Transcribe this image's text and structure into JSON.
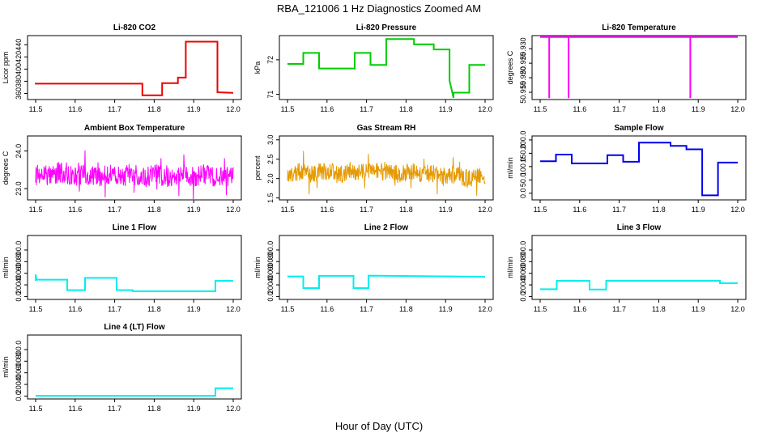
{
  "figure": {
    "title": "RBA_121006  1 Hz Diagnostics Zoomed AM",
    "xlabel": "Hour of Day (UTC)"
  },
  "chart_data": [
    {
      "type": "line",
      "title": "Li-820 CO2",
      "ylabel": "Licor ppm",
      "color": "#ee0000",
      "xlim": [
        11.5,
        12.0
      ],
      "ylim": [
        350,
        455
      ],
      "xticks": [
        11.5,
        11.6,
        11.7,
        11.8,
        11.9,
        12.0
      ],
      "yticks": [
        360,
        380,
        400,
        420,
        440
      ],
      "x": [
        11.5,
        11.5,
        11.65,
        11.68,
        11.68,
        11.72,
        11.77,
        11.77,
        11.82,
        11.82,
        11.86,
        11.86,
        11.88,
        11.88,
        11.96,
        11.96,
        12.0
      ],
      "y": [
        375,
        376,
        376,
        376,
        376,
        376,
        376,
        357,
        357,
        377,
        377,
        386,
        386,
        445,
        445,
        362,
        361
      ]
    },
    {
      "type": "line",
      "title": "Li-820 Pressure",
      "ylabel": "kPa",
      "color": "#00cc00",
      "xlim": [
        11.5,
        12.0
      ],
      "ylim": [
        70.85,
        72.7
      ],
      "xticks": [
        11.5,
        11.6,
        11.7,
        11.8,
        11.9,
        12.0
      ],
      "yticks": [
        71.0,
        72.0
      ],
      "x": [
        11.5,
        11.54,
        11.54,
        11.58,
        11.58,
        11.67,
        11.67,
        11.71,
        11.71,
        11.75,
        11.75,
        11.82,
        11.82,
        11.87,
        11.87,
        11.91,
        11.91,
        11.92,
        11.92,
        11.96,
        11.96,
        12.0
      ],
      "y": [
        71.88,
        71.88,
        72.2,
        72.2,
        71.75,
        71.75,
        72.2,
        72.2,
        71.85,
        71.85,
        72.6,
        72.6,
        72.45,
        72.45,
        72.3,
        72.3,
        71.4,
        70.9,
        71.05,
        71.05,
        71.85,
        71.85
      ]
    },
    {
      "type": "line",
      "title": "Li-820 Temperature",
      "ylabel": "degrees C",
      "color": "#ff00ff",
      "xlim": [
        11.5,
        12.0
      ],
      "ylim": [
        50.9125,
        50.9345
      ],
      "xticks": [
        11.5,
        11.6,
        11.7,
        11.8,
        11.9,
        12.0
      ],
      "yticks": [
        50.915,
        50.92,
        50.925,
        50.93
      ],
      "x": [
        11.5,
        11.523,
        11.523,
        11.523,
        11.523,
        11.572,
        11.572,
        11.572,
        11.572,
        11.88,
        11.88,
        11.88,
        11.88,
        12.0
      ],
      "y": [
        50.934,
        50.934,
        50.913,
        50.913,
        50.934,
        50.934,
        50.913,
        50.913,
        50.934,
        50.934,
        50.913,
        50.913,
        50.934,
        50.934
      ]
    },
    {
      "type": "line",
      "title": "Ambient Box Temperature",
      "ylabel": "degrees C",
      "color": "#ff00ff",
      "xlim": [
        11.5,
        12.0
      ],
      "ylim": [
        22.7,
        24.4
      ],
      "xticks": [
        11.5,
        11.6,
        11.7,
        11.8,
        11.9,
        12.0
      ],
      "yticks": [
        23.0,
        24.0
      ],
      "x": [
        11.5,
        11.52,
        11.54,
        11.56,
        11.58,
        11.6,
        11.62,
        11.64,
        11.66,
        11.68,
        11.7,
        11.72,
        11.74,
        11.76,
        11.78,
        11.8,
        11.82,
        11.84,
        11.86,
        11.88,
        11.9,
        11.92,
        11.94,
        11.96,
        11.98,
        12.0
      ],
      "y": [
        23.35,
        23.4,
        23.3,
        23.45,
        23.35,
        23.3,
        23.4,
        23.35,
        23.3,
        23.4,
        23.35,
        23.3,
        23.4,
        23.35,
        23.3,
        23.4,
        23.35,
        23.3,
        23.4,
        23.35,
        23.3,
        23.4,
        23.35,
        23.3,
        23.35,
        23.3
      ],
      "noise": 0.55
    },
    {
      "type": "line",
      "title": "Gas Stream RH",
      "ylabel": "percent",
      "color": "#e59a00",
      "xlim": [
        11.5,
        12.0
      ],
      "ylim": [
        1.45,
        3.1
      ],
      "xticks": [
        11.5,
        11.6,
        11.7,
        11.8,
        11.9,
        12.0
      ],
      "yticks": [
        1.5,
        2.0,
        2.5,
        3.0
      ],
      "x": [
        11.5,
        11.52,
        11.54,
        11.56,
        11.58,
        11.6,
        11.62,
        11.64,
        11.66,
        11.68,
        11.7,
        11.72,
        11.74,
        11.76,
        11.78,
        11.8,
        11.82,
        11.84,
        11.86,
        11.88,
        11.9,
        11.92,
        11.94,
        11.96,
        11.98,
        12.0
      ],
      "y": [
        2.1,
        2.15,
        2.2,
        2.1,
        2.2,
        2.15,
        2.2,
        2.1,
        2.2,
        2.15,
        2.2,
        2.2,
        2.15,
        2.2,
        2.1,
        2.15,
        2.2,
        2.1,
        2.15,
        2.1,
        2.05,
        2.1,
        2.05,
        2.0,
        2.05,
        2.0
      ],
      "noise": 0.45
    },
    {
      "type": "line",
      "title": "Sample Flow",
      "ylabel": "ml/min",
      "color": "#0000ee",
      "xlim": [
        11.5,
        12.0
      ],
      "ylim": [
        -25,
        215
      ],
      "xticks": [
        11.5,
        11.6,
        11.7,
        11.8,
        11.9,
        12.0
      ],
      "yticks": [
        0,
        50,
        100,
        150,
        200
      ],
      "x": [
        11.5,
        11.54,
        11.54,
        11.58,
        11.58,
        11.67,
        11.67,
        11.71,
        11.71,
        11.75,
        11.75,
        11.83,
        11.83,
        11.87,
        11.87,
        11.91,
        11.91,
        11.95,
        11.95,
        12.0
      ],
      "y": [
        120,
        120,
        145,
        145,
        112,
        112,
        143,
        143,
        118,
        118,
        190,
        190,
        178,
        178,
        165,
        165,
        -8,
        -8,
        115,
        115
      ]
    },
    {
      "type": "line",
      "title": "Line 1 Flow",
      "ylabel": "ml/min",
      "color": "#00eeee",
      "xlim": [
        11.5,
        12.0
      ],
      "ylim": [
        -50,
        1050
      ],
      "xticks": [
        11.5,
        11.6,
        11.7,
        11.8,
        11.9,
        12.0
      ],
      "yticks": [
        0,
        200,
        400,
        600,
        800
      ],
      "x": [
        11.5,
        11.5,
        11.502,
        11.58,
        11.58,
        11.625,
        11.625,
        11.705,
        11.705,
        11.745,
        11.745,
        11.955,
        11.955,
        12.0
      ],
      "y": [
        270,
        380,
        290,
        290,
        110,
        110,
        320,
        320,
        110,
        110,
        90,
        90,
        270,
        270
      ]
    },
    {
      "type": "line",
      "title": "Line 2 Flow",
      "ylabel": "ml/min",
      "color": "#00eeee",
      "xlim": [
        11.5,
        12.0
      ],
      "ylim": [
        -50,
        1050
      ],
      "xticks": [
        11.5,
        11.6,
        11.7,
        11.8,
        11.9,
        12.0
      ],
      "yticks": [
        0,
        200,
        400,
        600,
        800
      ],
      "x": [
        11.5,
        11.54,
        11.54,
        11.58,
        11.58,
        11.667,
        11.667,
        11.705,
        11.705,
        12.0
      ],
      "y": [
        345,
        345,
        145,
        145,
        355,
        355,
        145,
        145,
        360,
        340
      ]
    },
    {
      "type": "line",
      "title": "Line 3 Flow",
      "ylabel": "ml/min",
      "color": "#00eeee",
      "xlim": [
        11.5,
        12.0
      ],
      "ylim": [
        -50,
        1050
      ],
      "xticks": [
        11.5,
        11.6,
        11.7,
        11.8,
        11.9,
        12.0
      ],
      "yticks": [
        0,
        200,
        400,
        600,
        800
      ],
      "x": [
        11.5,
        11.542,
        11.542,
        11.625,
        11.625,
        11.667,
        11.667,
        11.955,
        11.955,
        12.0
      ],
      "y": [
        125,
        125,
        270,
        270,
        120,
        120,
        270,
        270,
        230,
        230
      ]
    },
    {
      "type": "line",
      "title": "Line 4 (LT) Flow",
      "ylabel": "ml/min",
      "color": "#00eeee",
      "xlim": [
        11.5,
        12.0
      ],
      "ylim": [
        -50,
        1050
      ],
      "xticks": [
        11.5,
        11.6,
        11.7,
        11.8,
        11.9,
        12.0
      ],
      "yticks": [
        0,
        200,
        400,
        600,
        800
      ],
      "x": [
        11.5,
        11.955,
        11.955,
        12.0
      ],
      "y": [
        5,
        5,
        135,
        135
      ]
    }
  ]
}
